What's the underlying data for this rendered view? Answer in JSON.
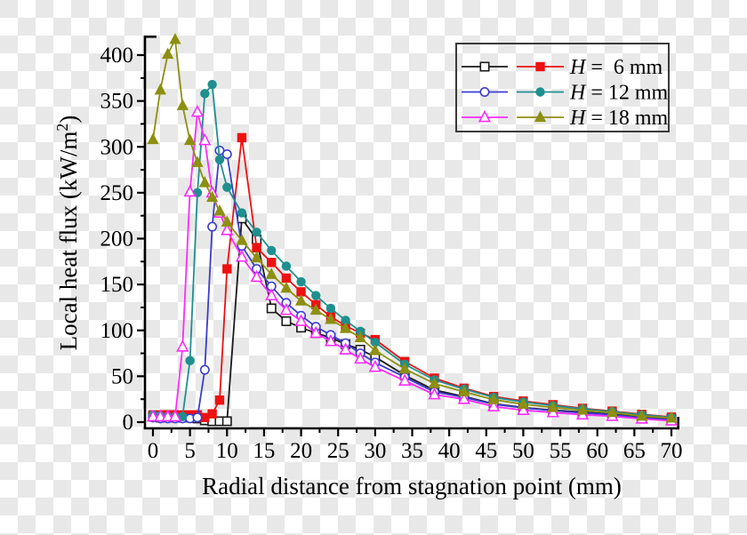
{
  "chart_data": {
    "type": "line",
    "title": "",
    "xlabel": "Radial distance from stagnation point (mm)",
    "ylabel_base": "Local heat flux (kW/m",
    "ylabel_sup": "2",
    "ylabel_close": ")",
    "xlim": [
      0,
      70
    ],
    "ylim": [
      0,
      420
    ],
    "grid": false,
    "legend_position": "top-right",
    "x_major_ticks": [
      0,
      5,
      10,
      15,
      20,
      25,
      30,
      35,
      40,
      45,
      50,
      55,
      60,
      65,
      70
    ],
    "x_minor_ticks": [
      2.5,
      7.5,
      12.5,
      17.5,
      22.5,
      27.5,
      32.5,
      37.5,
      42.5,
      47.5,
      52.5,
      57.5,
      62.5,
      67.5
    ],
    "y_major_ticks": [
      0,
      50,
      100,
      150,
      200,
      250,
      300,
      350,
      400
    ],
    "y_minor_ticks": [
      25,
      75,
      125,
      175,
      225,
      275,
      325,
      375
    ],
    "legend": {
      "border_color": "#3a3a3a",
      "rows": [
        {
          "var": "H",
          "rest": " =  6 mm"
        },
        {
          "var": "H",
          "rest": " = 12 mm"
        },
        {
          "var": "H",
          "rest": " = 18 mm"
        }
      ]
    },
    "series": [
      {
        "name": "H = 6 mm (open)",
        "marker": "square",
        "fill": "open",
        "color": "#1a1a1a",
        "points": [
          [
            0,
            6
          ],
          [
            1,
            5
          ],
          [
            2,
            5
          ],
          [
            3,
            5
          ],
          [
            4,
            5
          ],
          [
            5,
            5
          ],
          [
            6,
            4
          ],
          [
            7,
            2
          ],
          [
            8,
            1
          ],
          [
            9,
            1
          ],
          [
            10,
            1
          ],
          [
            12,
            222
          ],
          [
            14,
            199
          ],
          [
            16,
            124
          ],
          [
            18,
            110
          ],
          [
            20,
            103
          ],
          [
            22,
            97
          ],
          [
            24,
            92
          ],
          [
            26,
            85
          ],
          [
            28,
            79
          ],
          [
            30,
            71
          ],
          [
            34,
            51
          ],
          [
            38,
            35
          ],
          [
            42,
            28
          ],
          [
            46,
            20
          ],
          [
            50,
            16
          ],
          [
            54,
            13
          ],
          [
            58,
            11
          ],
          [
            62,
            8.5
          ],
          [
            66,
            5.5
          ],
          [
            70,
            3.5
          ]
        ]
      },
      {
        "name": "H = 6 mm (filled)",
        "marker": "square",
        "fill": "filled",
        "color": "#ee1111",
        "points": [
          [
            0,
            8
          ],
          [
            1,
            8
          ],
          [
            2,
            8
          ],
          [
            3,
            8
          ],
          [
            4,
            8
          ],
          [
            5,
            8
          ],
          [
            6,
            8
          ],
          [
            7,
            5
          ],
          [
            8,
            9
          ],
          [
            9,
            24
          ],
          [
            10,
            167
          ],
          [
            12,
            310
          ],
          [
            14,
            190
          ],
          [
            16,
            174
          ],
          [
            18,
            157
          ],
          [
            20,
            142
          ],
          [
            22,
            128
          ],
          [
            24,
            115
          ],
          [
            26,
            105
          ],
          [
            28,
            97
          ],
          [
            30,
            90
          ],
          [
            34,
            66
          ],
          [
            38,
            48
          ],
          [
            42,
            37
          ],
          [
            46,
            28
          ],
          [
            50,
            23
          ],
          [
            54,
            19
          ],
          [
            58,
            15
          ],
          [
            62,
            12
          ],
          [
            66,
            8.5
          ],
          [
            70,
            5.5
          ]
        ]
      },
      {
        "name": "H = 12 mm (open)",
        "marker": "circle",
        "fill": "open",
        "color": "#3c3cd0",
        "points": [
          [
            0,
            5
          ],
          [
            1,
            4
          ],
          [
            2,
            4
          ],
          [
            3,
            4
          ],
          [
            4,
            4
          ],
          [
            5,
            4
          ],
          [
            6,
            5
          ],
          [
            7,
            57
          ],
          [
            8,
            213
          ],
          [
            9,
            296
          ],
          [
            10,
            292
          ],
          [
            12,
            192
          ],
          [
            14,
            167
          ],
          [
            16,
            148
          ],
          [
            18,
            130
          ],
          [
            20,
            116
          ],
          [
            22,
            104
          ],
          [
            24,
            95
          ],
          [
            26,
            86
          ],
          [
            28,
            75
          ],
          [
            30,
            65
          ],
          [
            34,
            49
          ],
          [
            38,
            33
          ],
          [
            42,
            27
          ],
          [
            46,
            19.5
          ],
          [
            50,
            15.5
          ],
          [
            54,
            12.5
          ],
          [
            58,
            10
          ],
          [
            62,
            8
          ],
          [
            66,
            4.5
          ],
          [
            70,
            2.5
          ]
        ]
      },
      {
        "name": "H = 12 mm (filled)",
        "marker": "circle",
        "fill": "filled",
        "color": "#1f8f8f",
        "points": [
          [
            0,
            8
          ],
          [
            1,
            7
          ],
          [
            2,
            6
          ],
          [
            3,
            6
          ],
          [
            4,
            6
          ],
          [
            5,
            67
          ],
          [
            6,
            250
          ],
          [
            7,
            358
          ],
          [
            8,
            368
          ],
          [
            9,
            286
          ],
          [
            10,
            256
          ],
          [
            12,
            228
          ],
          [
            14,
            207
          ],
          [
            16,
            187
          ],
          [
            18,
            170
          ],
          [
            20,
            153
          ],
          [
            22,
            138
          ],
          [
            24,
            124
          ],
          [
            26,
            111
          ],
          [
            28,
            99
          ],
          [
            30,
            87
          ],
          [
            34,
            63
          ],
          [
            38,
            46
          ],
          [
            42,
            36
          ],
          [
            46,
            27
          ],
          [
            50,
            22
          ],
          [
            54,
            18
          ],
          [
            58,
            14.5
          ],
          [
            62,
            11.5
          ],
          [
            66,
            8
          ],
          [
            70,
            5
          ]
        ]
      },
      {
        "name": "H = 18 mm (open)",
        "marker": "triangle",
        "fill": "open",
        "color": "#fb2bfb",
        "points": [
          [
            0,
            6
          ],
          [
            1,
            6
          ],
          [
            2,
            6
          ],
          [
            3,
            6
          ],
          [
            4,
            82
          ],
          [
            5,
            251
          ],
          [
            6,
            338
          ],
          [
            7,
            307
          ],
          [
            8,
            250
          ],
          [
            9,
            228
          ],
          [
            10,
            209
          ],
          [
            12,
            180
          ],
          [
            14,
            158
          ],
          [
            16,
            138
          ],
          [
            18,
            122
          ],
          [
            20,
            110
          ],
          [
            22,
            97
          ],
          [
            24,
            88
          ],
          [
            26,
            79
          ],
          [
            28,
            69
          ],
          [
            30,
            60
          ],
          [
            34,
            45
          ],
          [
            38,
            30
          ],
          [
            42,
            25
          ],
          [
            46,
            17
          ],
          [
            50,
            13
          ],
          [
            54,
            10.5
          ],
          [
            58,
            8
          ],
          [
            62,
            6.5
          ],
          [
            66,
            3.5
          ],
          [
            70,
            1.5
          ]
        ]
      },
      {
        "name": "H = 18 mm (filled)",
        "marker": "triangle",
        "fill": "filled",
        "color": "#8d8f10",
        "points": [
          [
            0,
            308
          ],
          [
            1,
            362
          ],
          [
            2,
            401
          ],
          [
            3,
            417
          ],
          [
            4,
            345
          ],
          [
            5,
            307
          ],
          [
            6,
            283
          ],
          [
            7,
            261
          ],
          [
            8,
            245
          ],
          [
            9,
            230
          ],
          [
            10,
            218
          ],
          [
            12,
            198
          ],
          [
            14,
            179
          ],
          [
            16,
            161
          ],
          [
            18,
            146
          ],
          [
            20,
            132
          ],
          [
            22,
            122
          ],
          [
            24,
            112
          ],
          [
            26,
            102
          ],
          [
            28,
            92
          ],
          [
            30,
            78
          ],
          [
            34,
            58
          ],
          [
            38,
            42
          ],
          [
            42,
            33
          ],
          [
            46,
            24.5
          ],
          [
            50,
            19.5
          ],
          [
            54,
            16
          ],
          [
            58,
            13
          ],
          [
            62,
            10.5
          ],
          [
            66,
            6.5
          ],
          [
            70,
            4.5
          ]
        ]
      }
    ]
  }
}
